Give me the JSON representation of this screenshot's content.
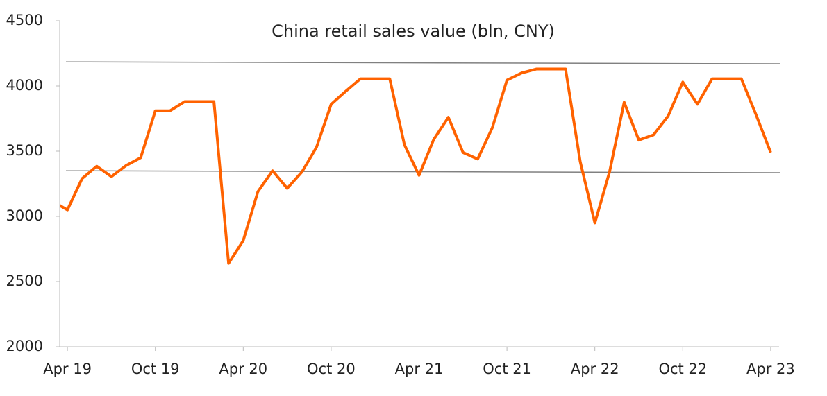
{
  "chart_data": {
    "type": "line",
    "title": "China retail sales value (bln, CNY)",
    "categories": [
      null,
      "Apr 19",
      null,
      null,
      null,
      null,
      null,
      "Oct 19",
      null,
      null,
      null,
      null,
      null,
      "Apr 20",
      null,
      null,
      null,
      null,
      null,
      "Oct 20",
      null,
      null,
      null,
      null,
      null,
      "Apr 21",
      null,
      null,
      null,
      null,
      null,
      "Oct 21",
      null,
      null,
      null,
      null,
      null,
      "Apr 22",
      null,
      null,
      null,
      null,
      null,
      "Oct 22",
      null,
      null,
      null,
      null,
      null,
      "Apr 23"
    ],
    "series": [
      {
        "color": "#ff6200",
        "values": [
          3115,
          3050,
          3290,
          3385,
          3305,
          3390,
          3450,
          3810,
          3810,
          3880,
          3880,
          3880,
          2640,
          2815,
          3190,
          3350,
          3215,
          3340,
          3530,
          3860,
          3960,
          4055,
          4055,
          4055,
          3550,
          3315,
          3590,
          3760,
          3490,
          3440,
          3680,
          4045,
          4100,
          4130,
          4130,
          4130,
          3420,
          2950,
          3340,
          3875,
          3585,
          3625,
          3770,
          4030,
          3860,
          4055,
          4055,
          4055,
          3780,
          3490
        ]
      }
    ],
    "reference_lines": [
      {
        "color": "#808080",
        "values": [
          4185,
          4170
        ]
      },
      {
        "color": "#808080",
        "values": [
          3350,
          3335
        ]
      }
    ],
    "ylim": [
      2000,
      4500
    ],
    "yticks": [
      2000,
      2500,
      3000,
      3500,
      4000,
      4500
    ]
  }
}
